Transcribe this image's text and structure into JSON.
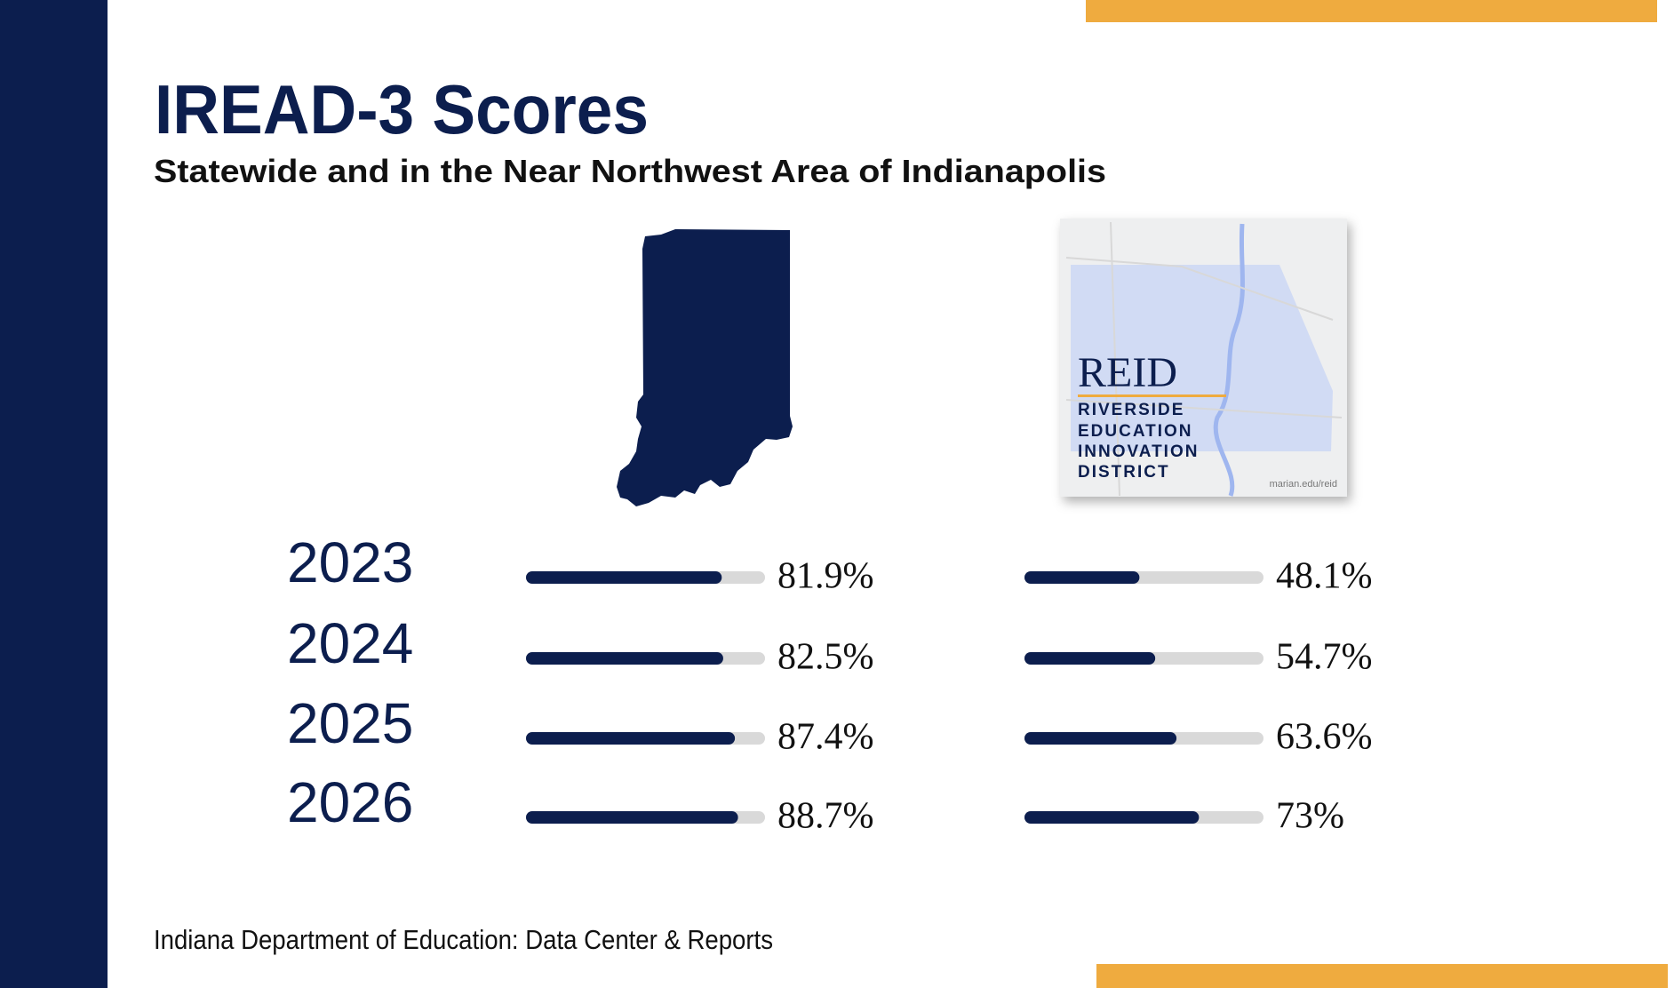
{
  "title": "IREAD-3 Scores",
  "subtitle": "Statewide and in the Near Northwest Area of Indianapolis",
  "source": "Indiana Department of Education: Data Center & Reports",
  "logo": {
    "name": "REID",
    "lines": [
      "RIVERSIDE",
      "EDUCATION",
      "INNOVATION",
      "DISTRICT"
    ],
    "url": "marian.edu/reid"
  },
  "chart_data": [
    {
      "type": "bar",
      "categories": [
        "2023",
        "2024",
        "2025",
        "2026"
      ],
      "values": [
        81.9,
        82.5,
        87.4,
        88.7
      ],
      "value_labels": [
        "81.9%",
        "82.5%",
        "87.4%",
        "88.7%"
      ],
      "xlim": [
        0,
        100
      ],
      "color": "#0c1e4e",
      "track_color": "#d9d9d9"
    },
    {
      "type": "bar",
      "values": [
        48.1,
        54.7,
        63.6,
        73
      ],
      "value_labels": [
        "48.1%",
        "54.7%",
        "63.6%",
        "73%"
      ],
      "xlim": [
        0,
        100
      ],
      "color": "#0c1e4e",
      "track_color": "#d9d9d9"
    }
  ]
}
